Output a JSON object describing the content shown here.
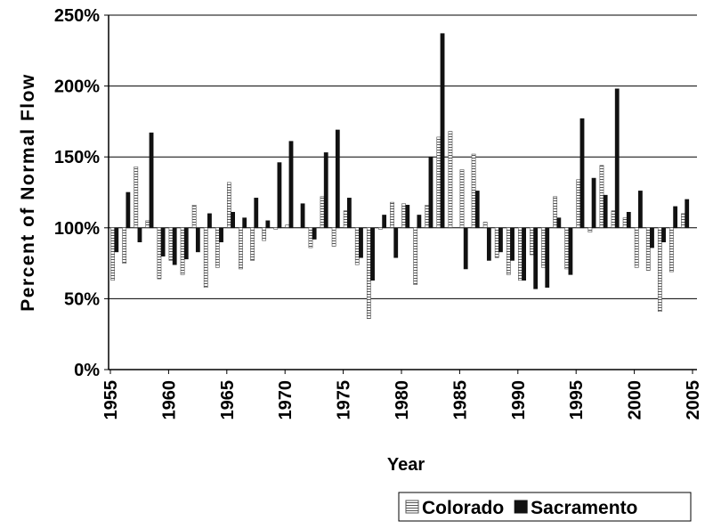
{
  "chart_data": {
    "type": "bar",
    "x_label": "Year",
    "y_label": "Percent of Normal Flow",
    "x": [
      1955,
      1956,
      1957,
      1958,
      1959,
      1960,
      1961,
      1962,
      1963,
      1964,
      1965,
      1966,
      1967,
      1968,
      1969,
      1970,
      1971,
      1972,
      1973,
      1974,
      1975,
      1976,
      1977,
      1978,
      1979,
      1980,
      1981,
      1982,
      1983,
      1984,
      1985,
      1986,
      1987,
      1988,
      1989,
      1990,
      1991,
      1992,
      1993,
      1994,
      1995,
      1996,
      1997,
      1998,
      1999,
      2000,
      2001,
      2002,
      2003,
      2004
    ],
    "bar_baseline": 100,
    "series": [
      {
        "name": "Colorado",
        "color": "#555555",
        "pattern": "horizontal-hatch",
        "values": [
          63,
          75,
          143,
          105,
          64,
          77,
          67,
          116,
          58,
          72,
          132,
          71,
          77,
          91,
          99,
          102,
          100,
          86,
          122,
          87,
          112,
          74,
          36,
          99,
          118,
          117,
          60,
          116,
          164,
          168,
          141,
          152,
          104,
          79,
          67,
          63,
          81,
          72,
          122,
          71,
          134,
          97,
          144,
          112,
          107,
          72,
          70,
          41,
          69,
          110
        ]
      },
      {
        "name": "Sacramento",
        "color": "#111111",
        "values": [
          83,
          125,
          90,
          167,
          80,
          74,
          78,
          83,
          110,
          90,
          111,
          107,
          121,
          105,
          146,
          161,
          117,
          92,
          153,
          169,
          121,
          79,
          63,
          109,
          79,
          116,
          109,
          150,
          237,
          100,
          71,
          126,
          77,
          83,
          77,
          63,
          57,
          58,
          107,
          67,
          177,
          135,
          123,
          198,
          111,
          126,
          86,
          90,
          115,
          120
        ]
      }
    ],
    "xlim": [
      1955,
      2005
    ],
    "xticks": [
      1955,
      1960,
      1965,
      1970,
      1975,
      1980,
      1985,
      1990,
      1995,
      2000,
      2005
    ],
    "ylim": [
      0,
      250
    ],
    "yticks": [
      {
        "value": 0,
        "label": "0%"
      },
      {
        "value": 50,
        "label": "50%"
      },
      {
        "value": 100,
        "label": "100%"
      },
      {
        "value": 150,
        "label": "150%"
      },
      {
        "value": 200,
        "label": "200%"
      },
      {
        "value": 250,
        "label": "250%"
      }
    ],
    "grid": true,
    "legend": "bottom-right"
  }
}
